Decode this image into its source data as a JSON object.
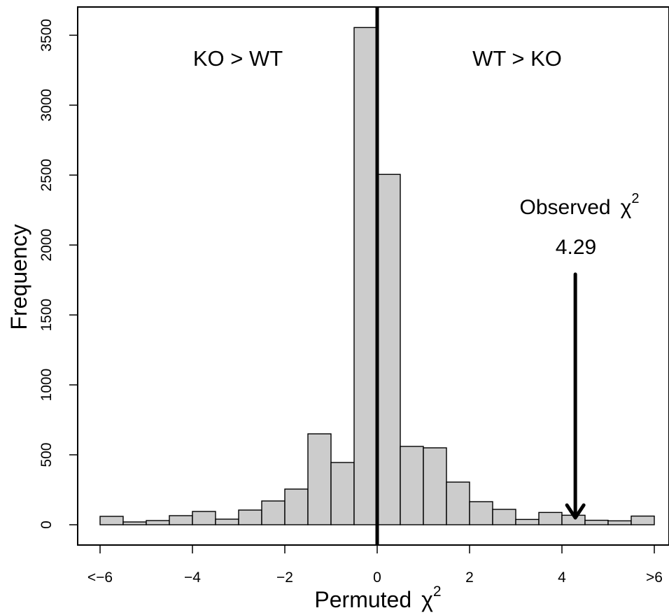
{
  "chart_data": {
    "type": "bar",
    "xlabel": "Permuted",
    "xlabel_symbol": "χ",
    "xlabel_sup": "2",
    "ylabel": "Frequency",
    "xlim": [
      -6,
      6
    ],
    "ylim": [
      0,
      3600
    ],
    "x_ticks": [
      -6,
      -4,
      -2,
      0,
      2,
      4,
      6
    ],
    "x_tick_labels": [
      "<−6",
      "−4",
      "−2",
      "0",
      "2",
      "4",
      ">6"
    ],
    "y_ticks": [
      0,
      500,
      1000,
      1500,
      2000,
      2500,
      3000,
      3500
    ],
    "y_tick_labels": [
      "0",
      "500",
      "1000",
      "1500",
      "2000",
      "2500",
      "3000",
      "3500"
    ],
    "bin_edges": [
      -6,
      -5.5,
      -5,
      -4.5,
      -4,
      -3.5,
      -3,
      -2.5,
      -2,
      -1.5,
      -1,
      -0.5,
      0,
      0.5,
      1,
      1.5,
      2,
      2.5,
      3,
      3.5,
      4,
      4.5,
      5,
      5.5,
      6
    ],
    "values": [
      60,
      20,
      30,
      65,
      95,
      40,
      105,
      170,
      255,
      650,
      445,
      3555,
      2505,
      560,
      550,
      305,
      165,
      110,
      38,
      88,
      68,
      32,
      28,
      62
    ],
    "bar_color": "#cccccc",
    "reference_line": 0,
    "region_labels": {
      "left": "KO > WT",
      "right": "WT > KO"
    },
    "annotation": {
      "text": "Observed",
      "symbol": "χ",
      "sup": "2",
      "value_label": "4.29",
      "x": 4.29
    },
    "grid": false,
    "legend": "none"
  }
}
